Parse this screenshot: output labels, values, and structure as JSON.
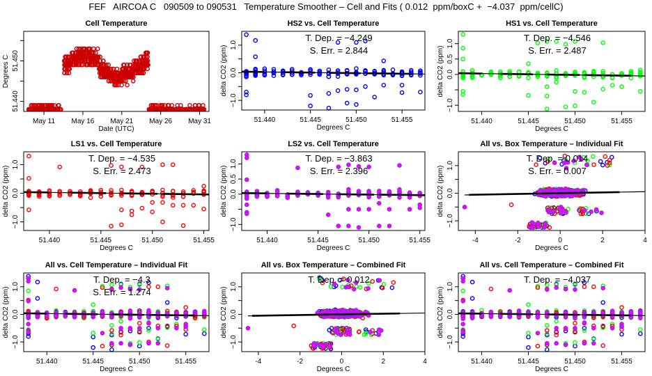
{
  "figure_title": "FEF   AIRCOA C   090509 to 090531   Temperature Smoother – Cell and Fits ( 0.012  ppm/boxC +  −4.037  ppm/cellC)",
  "colors": {
    "HS2": "#0000ff",
    "HS1": "#00ff00",
    "LS1": "#ff0000",
    "LS2": "#a020f0",
    "LS2_fill": "#ff00ff",
    "timeseries": "#cc0000",
    "fit_line": "#000000"
  },
  "chart_data": [
    {
      "id": "cell-temperature",
      "type": "scatter",
      "title": "Cell Temperature",
      "xlabel": "Date (UTC)",
      "ylabel": "Degrees C",
      "x_tick_labels": [
        "May 11",
        "May 16",
        "May 21",
        "May 26",
        "May 31"
      ],
      "x_ticks_day": [
        11,
        16,
        21,
        26,
        31
      ],
      "xlim_day": [
        8.4,
        32.2
      ],
      "y_tick_labels": [
        "51.440",
        "51.450"
      ],
      "y_ticks": [
        51.437,
        51.44,
        51.445,
        51.45,
        51.455
      ],
      "ylim": [
        51.4375,
        51.4573
      ],
      "segments": [
        {
          "day_start": 9.0,
          "day_end": 13.2,
          "y_low": 51.438,
          "y_high": 51.439,
          "note": "flat low"
        },
        {
          "day_start": 13.6,
          "day_end": 24.4,
          "y_low": 51.4435,
          "y_high": 51.4555,
          "note": "elevated noisy"
        },
        {
          "day_start": 24.4,
          "day_end": 31.6,
          "y_low": 51.438,
          "y_high": 51.4395,
          "note": "flat low"
        }
      ],
      "series": [
        {
          "name": "cell temperature",
          "color": "#cc0000"
        }
      ]
    },
    {
      "id": "hs2-vs-cell",
      "type": "scatter",
      "title": "HS2 vs. Cell Temperature",
      "xlabel": "Degrees C",
      "ylabel": "delta CO2 (ppm)",
      "x_tick_labels": [
        "51.440",
        "51.445",
        "51.450",
        "51.455"
      ],
      "x_ticks": [
        51.44,
        51.445,
        51.45,
        51.455
      ],
      "xlim": [
        51.4375,
        51.4575
      ],
      "y_tick_labels": [
        "-1.0",
        "0.0",
        "1.0"
      ],
      "y_ticks": [
        -1.0,
        -0.5,
        0.0,
        0.5,
        1.0
      ],
      "ylim": [
        -1.35,
        1.5
      ],
      "annotation": {
        "tdep_label": "T. Dep. =",
        "tdep": "−4.249",
        "serr_label": "S. Err. =",
        "serr": "2.844"
      },
      "slope": -4.249,
      "series": [
        {
          "name": "HS2",
          "color": "#0000ff"
        }
      ],
      "outliers": [
        [
          51.438,
          1.38
        ],
        [
          51.438,
          -0.7
        ],
        [
          51.438,
          -0.8
        ],
        [
          51.439,
          1.17
        ],
        [
          51.439,
          0.58
        ],
        [
          51.445,
          -0.82
        ],
        [
          51.445,
          -1.2
        ],
        [
          51.447,
          -0.75
        ],
        [
          51.447,
          -1.28
        ],
        [
          51.448,
          -0.65
        ],
        [
          51.448,
          1.1
        ],
        [
          51.449,
          -0.6
        ],
        [
          51.449,
          -1.1
        ],
        [
          51.45,
          -0.62
        ],
        [
          51.45,
          -1.15
        ],
        [
          51.45,
          1.1
        ],
        [
          51.451,
          -0.5
        ],
        [
          51.451,
          1.15
        ],
        [
          51.452,
          -0.88
        ],
        [
          51.453,
          -0.45
        ],
        [
          51.453,
          0.43
        ],
        [
          51.455,
          -0.45
        ],
        [
          51.455,
          -0.72
        ],
        [
          51.457,
          -0.7
        ]
      ]
    },
    {
      "id": "hs1-vs-cell",
      "type": "scatter",
      "title": "HS1 vs. Cell Temperature",
      "xlabel": "Degrees C",
      "ylabel": "delta CO2 (ppm)",
      "x_tick_labels": [
        "51.440",
        "51.445",
        "51.450",
        "51.455"
      ],
      "x_ticks": [
        51.44,
        51.445,
        51.45,
        51.455
      ],
      "xlim": [
        51.4375,
        51.4575
      ],
      "y_tick_labels": [
        "-1.0",
        "0.0",
        "0.5",
        "1.0"
      ],
      "y_ticks": [
        -1.0,
        -0.5,
        0.0,
        0.5,
        1.0
      ],
      "ylim": [
        -1.2,
        1.4
      ],
      "annotation": {
        "tdep_label": "T. Dep. =",
        "tdep": "−4.546",
        "serr_label": "S. Err. =",
        "serr": "2.487"
      },
      "slope": -4.546,
      "series": [
        {
          "name": "HS1",
          "color": "#00ff00"
        }
      ],
      "outliers": [
        [
          51.438,
          1.3
        ],
        [
          51.438,
          0.85
        ],
        [
          51.438,
          0.5
        ],
        [
          51.438,
          -0.55
        ],
        [
          51.438,
          -0.65
        ],
        [
          51.445,
          0.35
        ],
        [
          51.445,
          -0.68
        ],
        [
          51.446,
          1.02
        ],
        [
          51.447,
          1.07
        ],
        [
          51.447,
          -0.4
        ],
        [
          51.447,
          -0.7
        ],
        [
          51.447,
          -1.12
        ],
        [
          51.448,
          1.07
        ],
        [
          51.448,
          -0.25
        ],
        [
          51.449,
          0.98
        ],
        [
          51.449,
          -1.05
        ],
        [
          51.45,
          1.07
        ],
        [
          51.45,
          -0.55
        ],
        [
          51.45,
          -1.02
        ],
        [
          51.451,
          -0.58
        ],
        [
          51.452,
          -0.9
        ],
        [
          51.453,
          1.03
        ],
        [
          51.453,
          -0.48
        ],
        [
          51.454,
          -0.35
        ],
        [
          51.455,
          -0.4
        ],
        [
          51.456,
          -0.12
        ],
        [
          51.457,
          -0.55
        ]
      ]
    },
    {
      "id": "ls1-vs-cell",
      "type": "scatter",
      "title": "LS1 vs. Cell Temperature",
      "xlabel": "Degrees C",
      "ylabel": "delta CO2 (ppm)",
      "x_tick_labels": [
        "51.440",
        "51.445",
        "51.450",
        "51.455"
      ],
      "x_ticks": [
        51.44,
        51.445,
        51.45,
        51.455
      ],
      "xlim": [
        51.4375,
        51.4555
      ],
      "y_tick_labels": [
        "-1.0",
        "0.0",
        "1.0"
      ],
      "y_ticks": [
        -1.0,
        -0.5,
        0.0,
        0.5,
        1.0
      ],
      "ylim": [
        -1.3,
        1.45
      ],
      "annotation": {
        "tdep_label": "T. Dep. =",
        "tdep": "−4.535",
        "serr_label": "S. Err. =",
        "serr": "2.473"
      },
      "slope": -4.535,
      "series": [
        {
          "name": "LS1",
          "color": "#ff0000"
        }
      ],
      "outliers": [
        [
          51.438,
          1.3
        ],
        [
          51.438,
          0.52
        ],
        [
          51.438,
          -0.58
        ],
        [
          51.441,
          0.92
        ],
        [
          51.446,
          0.97
        ],
        [
          51.446,
          -1.15
        ],
        [
          51.447,
          0.92
        ],
        [
          51.447,
          -0.58
        ],
        [
          51.447,
          -1.1
        ],
        [
          51.448,
          -0.62
        ],
        [
          51.448,
          -0.75
        ],
        [
          51.449,
          0.92
        ],
        [
          51.449,
          -0.52
        ],
        [
          51.45,
          -0.32
        ],
        [
          51.45,
          -0.65
        ],
        [
          51.451,
          1.0
        ],
        [
          51.451,
          -0.32
        ],
        [
          51.451,
          -1.0
        ],
        [
          51.452,
          1.0
        ],
        [
          51.452,
          -0.42
        ],
        [
          51.453,
          -0.42
        ],
        [
          51.453,
          -1.13
        ],
        [
          51.454,
          -0.42
        ],
        [
          51.455,
          0.25
        ],
        [
          51.455,
          -0.55
        ]
      ]
    },
    {
      "id": "ls2-vs-cell",
      "type": "scatter",
      "title": "LS2 vs. Cell Temperature",
      "xlabel": "Degrees C",
      "ylabel": "delta CO2 (ppm)",
      "x_tick_labels": [
        "51.440",
        "51.445",
        "51.450",
        "51.455"
      ],
      "x_ticks": [
        51.44,
        51.445,
        51.45,
        51.455
      ],
      "xlim": [
        51.4375,
        51.4555
      ],
      "y_tick_labels": [
        "-1.0",
        "0.0",
        "0.5",
        "1.0"
      ],
      "y_ticks": [
        -1.0,
        -0.5,
        0.0,
        0.5,
        1.0
      ],
      "ylim": [
        -1.2,
        1.4
      ],
      "annotation": {
        "tdep_label": "T. Dep. =",
        "tdep": "−3.863",
        "serr_label": "S. Err. =",
        "serr": "2.396"
      },
      "slope": -3.863,
      "series": [
        {
          "name": "LS2",
          "color": "#a020f0"
        }
      ],
      "outliers": [
        [
          51.438,
          1.3
        ],
        [
          51.438,
          1.2
        ],
        [
          51.438,
          0.48
        ],
        [
          51.438,
          -0.35
        ],
        [
          51.438,
          -0.6
        ],
        [
          51.438,
          -0.65
        ],
        [
          51.443,
          0.87
        ],
        [
          51.446,
          -0.68
        ],
        [
          51.447,
          0.9
        ],
        [
          51.447,
          -1.05
        ],
        [
          51.448,
          0.97
        ],
        [
          51.448,
          -1.05
        ],
        [
          51.448,
          -0.5
        ],
        [
          51.449,
          0.92
        ],
        [
          51.449,
          -1.1
        ],
        [
          51.449,
          -0.5
        ],
        [
          51.45,
          0.9
        ],
        [
          51.45,
          -0.5
        ],
        [
          51.451,
          -1.05
        ],
        [
          51.451,
          -0.3
        ],
        [
          51.452,
          -1.05
        ],
        [
          51.452,
          -0.5
        ],
        [
          51.453,
          0.95
        ],
        [
          51.454,
          -0.5
        ],
        [
          51.455,
          -0.35
        ],
        [
          51.455,
          -0.45
        ]
      ]
    },
    {
      "id": "all-vs-box-individual",
      "type": "scatter",
      "title": "All vs. Box Temperature – Individual Fit",
      "xlabel": "Degrees C",
      "ylabel": "delta CO2 (ppm)",
      "x_tick_labels": [
        "-4",
        "-2",
        "0",
        "2",
        "4"
      ],
      "x_ticks": [
        -4,
        -2,
        0,
        2,
        4
      ],
      "xlim": [
        -4.8,
        4.0
      ],
      "y_tick_labels": [
        "-1.0",
        "0.0",
        "1.0"
      ],
      "y_ticks": [
        -1.0,
        -0.5,
        0.0,
        0.5,
        1.0
      ],
      "ylim": [
        -1.35,
        1.5
      ],
      "annotation": {
        "tdep_label": "T. Dep. =",
        "tdep": "0.014",
        "serr_label": "S. Err. =",
        "serr": "0.007"
      },
      "slope": 0.014,
      "series": [
        {
          "name": "HS2",
          "color": "#0000ff"
        },
        {
          "name": "HS1",
          "color": "#00ff00"
        },
        {
          "name": "LS1",
          "color": "#ff0000"
        },
        {
          "name": "LS2",
          "color": "#a020f0"
        }
      ]
    },
    {
      "id": "all-vs-cell-individual",
      "type": "scatter",
      "title": "All vs. Cell Temperature – Individual Fit",
      "xlabel": "Degrees C",
      "ylabel": "delta CO2 (ppm)",
      "x_tick_labels": [
        "51.440",
        "51.445",
        "51.450",
        "51.455"
      ],
      "x_ticks": [
        51.44,
        51.445,
        51.45,
        51.455
      ],
      "xlim": [
        51.4375,
        51.4575
      ],
      "y_tick_labels": [
        "-1.0",
        "0.0",
        "1.0"
      ],
      "y_ticks": [
        -1.0,
        -0.5,
        0.0,
        0.5,
        1.0
      ],
      "ylim": [
        -1.35,
        1.5
      ],
      "annotation": {
        "tdep_label": "T. Dep. =",
        "tdep": "−4.3",
        "serr_label": "S. Err. =",
        "serr": "1.274"
      },
      "slope": -4.3,
      "series": [
        {
          "name": "HS2",
          "color": "#0000ff"
        },
        {
          "name": "HS1",
          "color": "#00ff00"
        },
        {
          "name": "LS1",
          "color": "#ff0000"
        },
        {
          "name": "LS2",
          "color": "#a020f0"
        }
      ]
    },
    {
      "id": "all-vs-box-combined",
      "type": "scatter",
      "title": "All vs. Box Temperature – Combined Fit",
      "xlabel": "Degrees C",
      "ylabel": "delta CO2 (ppm)",
      "x_tick_labels": [
        "-4",
        "-2",
        "0",
        "2",
        "4"
      ],
      "x_ticks": [
        -4,
        -2,
        0,
        2,
        4
      ],
      "xlim": [
        -4.8,
        4.0
      ],
      "y_tick_labels": [
        "-1.0",
        "0.0",
        "1.0"
      ],
      "y_ticks": [
        -1.0,
        -0.5,
        0.0,
        0.5,
        1.0
      ],
      "ylim": [
        -1.35,
        1.5
      ],
      "annotation": {
        "tdep_label": "T. Dep. =",
        "tdep": "0.012"
      },
      "slope": 0.012,
      "series": [
        {
          "name": "HS2",
          "color": "#0000ff"
        },
        {
          "name": "HS1",
          "color": "#00ff00"
        },
        {
          "name": "LS1",
          "color": "#ff0000"
        },
        {
          "name": "LS2",
          "color": "#a020f0"
        }
      ]
    },
    {
      "id": "all-vs-cell-combined",
      "type": "scatter",
      "title": "All vs. Cell Temperature – Combined Fit",
      "xlabel": "Degrees C",
      "ylabel": "delta CO2 (ppm)",
      "x_tick_labels": [
        "51.440",
        "51.445",
        "51.450",
        "51.455"
      ],
      "x_ticks": [
        51.44,
        51.445,
        51.45,
        51.455
      ],
      "xlim": [
        51.4375,
        51.4575
      ],
      "y_tick_labels": [
        "-1.0",
        "0.0",
        "1.0"
      ],
      "y_ticks": [
        -1.0,
        -0.5,
        0.0,
        0.5,
        1.0
      ],
      "ylim": [
        -1.35,
        1.5
      ],
      "annotation": {
        "tdep_label": "T. Dep. =",
        "tdep": "−4.037"
      },
      "slope": -4.037,
      "series": [
        {
          "name": "HS2",
          "color": "#0000ff"
        },
        {
          "name": "HS1",
          "color": "#00ff00"
        },
        {
          "name": "LS1",
          "color": "#ff0000"
        },
        {
          "name": "LS2",
          "color": "#a020f0"
        }
      ]
    }
  ]
}
